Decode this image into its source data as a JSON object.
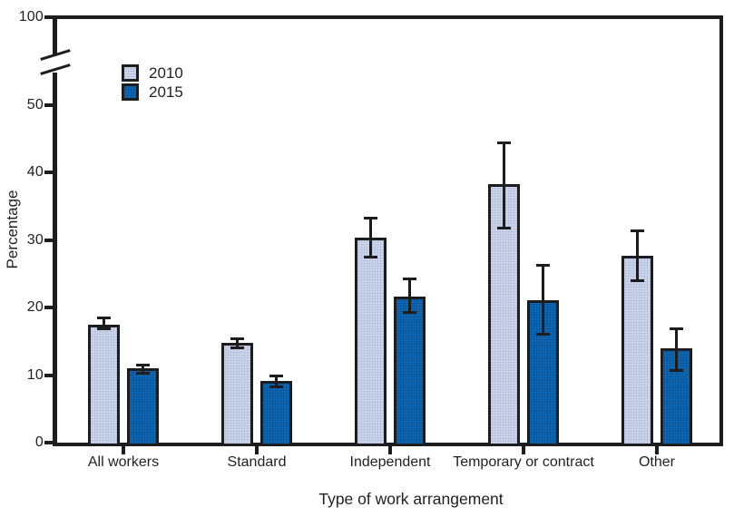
{
  "chart_data": {
    "type": "bar",
    "title": "",
    "xlabel": "Type of work arrangement",
    "ylabel": "Percentage",
    "categories": [
      "All workers",
      "Standard",
      "Independent",
      "Temporary or contract",
      "Other"
    ],
    "series": [
      {
        "name": "2010",
        "color": "#cad4eb",
        "values": [
          17.5,
          14.8,
          30.3,
          38.3,
          27.7
        ],
        "error_low": [
          16.8,
          14.0,
          27.5,
          31.8,
          24.0
        ],
        "error_high": [
          18.4,
          15.4,
          33.2,
          44.4,
          31.4
        ]
      },
      {
        "name": "2015",
        "color": "#0e67b2",
        "values": [
          11.0,
          9.1,
          21.6,
          21.1,
          14.0
        ],
        "error_low": [
          10.3,
          8.3,
          19.3,
          16.0,
          10.7
        ],
        "error_high": [
          11.5,
          9.9,
          24.2,
          26.3,
          16.9
        ]
      }
    ],
    "y_ticks": [
      0,
      10,
      20,
      30,
      40,
      50,
      100
    ],
    "ylim": [
      0,
      100
    ],
    "axis_break_between": [
      55,
      100
    ],
    "legend_position": "top-left",
    "grid": false,
    "error_bars": true
  },
  "colors": {
    "axis": "#1d1d1f",
    "text": "#231f20",
    "series_2010": "#cad4eb",
    "series_2015": "#0e67b2"
  }
}
